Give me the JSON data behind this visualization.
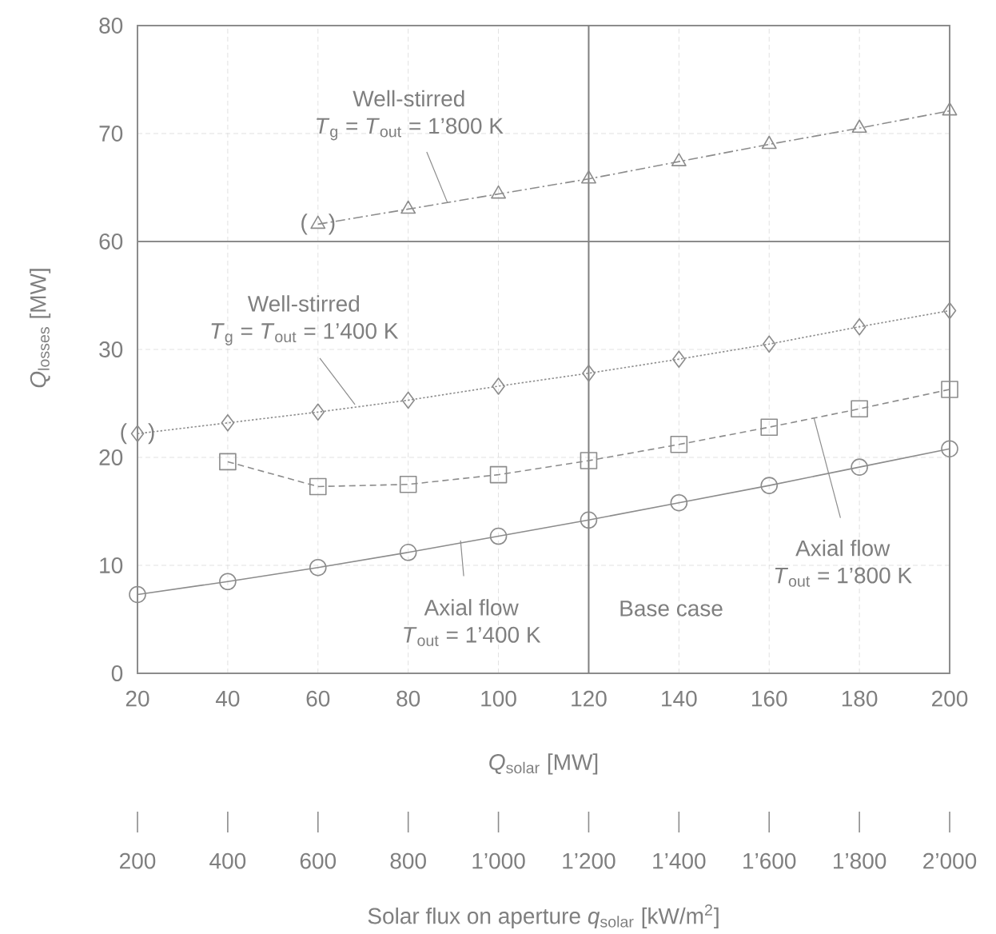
{
  "chart_data": [
    {
      "type": "line",
      "xlim": [
        20,
        200
      ],
      "xticks": [
        20,
        40,
        60,
        80,
        100,
        120,
        140,
        160,
        180,
        200
      ],
      "ylim": [
        60,
        80
      ],
      "yticks": [
        60,
        70,
        80
      ],
      "tick_labels": "y",
      "grid": true,
      "ref_lines": [
        {
          "axis": "x",
          "value": 120,
          "color": "#7f7f7f"
        }
      ],
      "annotations": [
        {
          "text": "( )",
          "x": 60,
          "y": 61.6
        }
      ],
      "series": [
        {
          "name": "Well-stirred *T*$_{g}$ = *T*$_{out}$ = 1’800 K",
          "color": "#8c8c8c",
          "marker": "triangle",
          "line_style": "dashdot",
          "x": [
            60,
            80,
            100,
            120,
            140,
            160,
            180,
            200
          ],
          "values": [
            61.6,
            63.0,
            64.4,
            65.8,
            67.4,
            69.0,
            70.5,
            72.1
          ]
        }
      ]
    },
    {
      "type": "line",
      "xlim": [
        20,
        200
      ],
      "xticks": [
        20,
        40,
        60,
        80,
        100,
        120,
        140,
        160,
        180,
        200
      ],
      "ylim": [
        0,
        40
      ],
      "yticks": [
        0,
        10,
        20,
        30
      ],
      "grid": true,
      "xlabel": "*Q*$_{solar}$ [MW]",
      "ylabel": "*Q*$_{losses}$ [MW]",
      "x2lim": [
        200,
        2000
      ],
      "x2ticks": [
        200,
        400,
        600,
        800,
        {
          "value": 1000,
          "label": "1’000"
        },
        {
          "value": 1200,
          "label": "1’200"
        },
        {
          "value": 1400,
          "label": "1’400"
        },
        {
          "value": 1600,
          "label": "1’600"
        },
        {
          "value": 1800,
          "label": "1’800"
        },
        {
          "value": 2000,
          "label": "2’000"
        }
      ],
      "x2label": "Solar flux on aperture *q*$_{solar}$ [kW/m$^{2}$]",
      "ref_lines": [
        {
          "axis": "x",
          "value": 120,
          "label": "Base case",
          "color": "#7f7f7f"
        }
      ],
      "annotations": [
        {
          "text": "( )",
          "x": 20,
          "y": 22.2
        }
      ],
      "x": [
        20,
        40,
        60,
        80,
        100,
        120,
        140,
        160,
        180,
        200
      ],
      "series": [
        {
          "name": "Well-stirred *T*$_{g}$ = *T*$_{out}$ = 1’400 K",
          "color": "#8c8c8c",
          "marker": "diamond",
          "line_style": "dotted",
          "values": [
            22.2,
            23.2,
            24.2,
            25.3,
            26.6,
            27.8,
            29.1,
            30.5,
            32.1,
            33.6
          ]
        },
        {
          "name": "Axial flow *T*$_{out}$ = 1’800 K",
          "color": "#8c8c8c",
          "marker": "square",
          "line_style": "dashed",
          "x": [
            40,
            60,
            80,
            100,
            120,
            140,
            160,
            180,
            200
          ],
          "values": [
            19.6,
            17.3,
            17.5,
            18.4,
            19.7,
            21.2,
            22.8,
            24.5,
            26.3
          ]
        },
        {
          "name": "Axial flow *T*$_{out}$ = 1’400 K",
          "color": "#8c8c8c",
          "marker": "circle",
          "line_style": "solid",
          "values": [
            7.3,
            8.5,
            9.8,
            11.2,
            12.7,
            14.2,
            15.8,
            17.4,
            19.1,
            20.8
          ]
        }
      ]
    }
  ]
}
